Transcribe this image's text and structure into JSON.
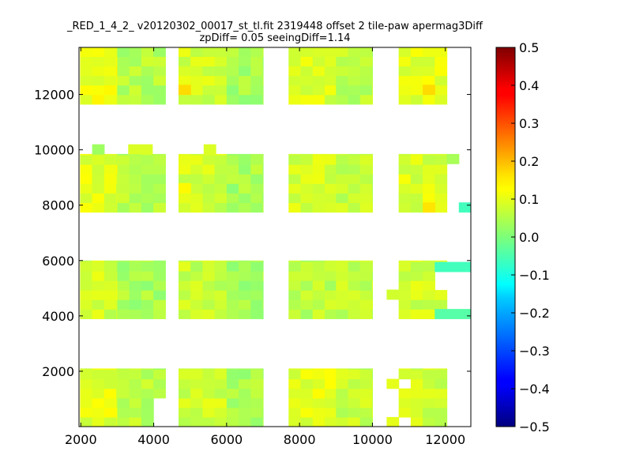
{
  "chart_data": {
    "type": "heatmap",
    "title_line1": "_RED_1_4_2_ v20120302_00017_st_tl.fit 2319448 offset 2 tile-paw apermag3Diff",
    "title_line2": "zpDiff= 0.05 seeingDiff=1.14",
    "xlim": [
      1950,
      12700
    ],
    "ylim": [
      0,
      13700
    ],
    "xticks": [
      2000,
      4000,
      6000,
      8000,
      10000,
      12000
    ],
    "yticks": [
      2000,
      4000,
      6000,
      8000,
      10000,
      12000
    ],
    "colorbar": {
      "min": -0.5,
      "max": 0.5,
      "colormap": "jet",
      "ticks": [
        0.5,
        0.4,
        0.3,
        0.2,
        0.1,
        0.0,
        -0.1,
        -0.2,
        -0.3,
        -0.4,
        -0.5
      ],
      "tick_labels": [
        "0.5",
        "0.4",
        "0.3",
        "0.2",
        "0.1",
        "0.0",
        "−0.1",
        "−0.2",
        "−0.3",
        "−0.4",
        "−0.5"
      ]
    },
    "cell_size": [
      330,
      345
    ],
    "blocks": [
      {
        "x": [
          1980,
          3000
        ],
        "y": [
          0,
          2100
        ],
        "value": 0.1
      },
      {
        "x": [
          3000,
          4320
        ],
        "y": [
          0,
          2100
        ],
        "value": 0.06
      },
      {
        "x": [
          4680,
          6000
        ],
        "y": [
          0,
          2100
        ],
        "value": 0.08
      },
      {
        "x": [
          6000,
          7000
        ],
        "y": [
          0,
          2100
        ],
        "value": 0.04
      },
      {
        "x": [
          7700,
          9000
        ],
        "y": [
          0,
          2100
        ],
        "value": 0.1
      },
      {
        "x": [
          9000,
          10000
        ],
        "y": [
          0,
          2100
        ],
        "value": 0.07
      },
      {
        "x": [
          10720,
          12040
        ],
        "y": [
          0,
          2100
        ],
        "value": 0.08
      },
      {
        "x": [
          1980,
          3000
        ],
        "y": [
          3900,
          6000
        ],
        "value": 0.08
      },
      {
        "x": [
          3000,
          4320
        ],
        "y": [
          3900,
          6000
        ],
        "value": 0.04
      },
      {
        "x": [
          4680,
          6000
        ],
        "y": [
          3900,
          6000
        ],
        "value": 0.07
      },
      {
        "x": [
          6000,
          7000
        ],
        "y": [
          3900,
          6000
        ],
        "value": 0.04
      },
      {
        "x": [
          7700,
          9000
        ],
        "y": [
          3900,
          6000
        ],
        "value": 0.06
      },
      {
        "x": [
          9000,
          10000
        ],
        "y": [
          3900,
          6000
        ],
        "value": 0.07
      },
      {
        "x": [
          10720,
          12040
        ],
        "y": [
          3900,
          6000
        ],
        "value": 0.08
      },
      {
        "x": [
          1980,
          3000
        ],
        "y": [
          7750,
          9850
        ],
        "value": 0.1
      },
      {
        "x": [
          3000,
          4320
        ],
        "y": [
          7750,
          9850
        ],
        "value": 0.05
      },
      {
        "x": [
          4680,
          6000
        ],
        "y": [
          7750,
          9850
        ],
        "value": 0.08
      },
      {
        "x": [
          6000,
          7000
        ],
        "y": [
          7750,
          9850
        ],
        "value": 0.04
      },
      {
        "x": [
          7700,
          9000
        ],
        "y": [
          7750,
          9850
        ],
        "value": 0.08
      },
      {
        "x": [
          9000,
          10000
        ],
        "y": [
          7750,
          9850
        ],
        "value": 0.07
      },
      {
        "x": [
          10720,
          12040
        ],
        "y": [
          7750,
          9850
        ],
        "value": 0.09
      },
      {
        "x": [
          1980,
          3000
        ],
        "y": [
          11650,
          13700
        ],
        "value": 0.11
      },
      {
        "x": [
          3000,
          4320
        ],
        "y": [
          11650,
          13700
        ],
        "value": 0.05
      },
      {
        "x": [
          4680,
          6000
        ],
        "y": [
          11650,
          13700
        ],
        "value": 0.08
      },
      {
        "x": [
          6000,
          7000
        ],
        "y": [
          11650,
          13700
        ],
        "value": 0.04
      },
      {
        "x": [
          7700,
          9000
        ],
        "y": [
          11650,
          13700
        ],
        "value": 0.09
      },
      {
        "x": [
          9000,
          10000
        ],
        "y": [
          11650,
          13700
        ],
        "value": 0.06
      },
      {
        "x": [
          10720,
          12040
        ],
        "y": [
          11650,
          13700
        ],
        "value": 0.1
      }
    ],
    "holes": [
      {
        "x": [
          3990,
          4320
        ],
        "y": [
          0,
          690
        ]
      },
      {
        "x": [
          3990,
          4320
        ],
        "y": [
          690,
          1035
        ]
      },
      {
        "x": [
          10720,
          11050
        ],
        "y": [
          0,
          345
        ]
      },
      {
        "x": [
          10720,
          11050
        ],
        "y": [
          1380,
          1725
        ]
      },
      {
        "x": [
          11710,
          12040
        ],
        "y": [
          4900,
          5950
        ]
      },
      {
        "x": [
          11710,
          12040
        ],
        "y": [
          3900,
          4250
        ]
      }
    ],
    "extras": [
      {
        "x": [
          2310,
          2640
        ],
        "y": [
          9850,
          10200
        ],
        "value": 0.03
      },
      {
        "x": [
          3300,
          3960
        ],
        "y": [
          9850,
          10200
        ],
        "value": 0.09
      },
      {
        "x": [
          5370,
          5700
        ],
        "y": [
          9850,
          10200
        ],
        "value": 0.09
      },
      {
        "x": [
          10390,
          10720
        ],
        "y": [
          0,
          345
        ],
        "value": 0.1
      },
      {
        "x": [
          10390,
          10720
        ],
        "y": [
          1380,
          1725
        ],
        "value": 0.1
      },
      {
        "x": [
          10390,
          10720
        ],
        "y": [
          4600,
          4950
        ],
        "value": 0.08
      },
      {
        "x": [
          11710,
          12700
        ],
        "y": [
          5600,
          5950
        ],
        "value": -0.06
      },
      {
        "x": [
          11710,
          12700
        ],
        "y": [
          3900,
          4250
        ],
        "value": -0.04
      },
      {
        "x": [
          12040,
          12370
        ],
        "y": [
          9500,
          9850
        ],
        "value": 0.04
      },
      {
        "x": [
          12370,
          12700
        ],
        "y": [
          7750,
          8100
        ],
        "value": -0.06
      },
      {
        "x": [
          11380,
          11710
        ],
        "y": [
          7750,
          8100
        ],
        "value": 0.15
      },
      {
        "x": [
          11380,
          11710
        ],
        "y": [
          12000,
          12350
        ],
        "value": 0.16
      },
      {
        "x": [
          4680,
          5010
        ],
        "y": [
          12000,
          12350
        ],
        "value": 0.16
      },
      {
        "x": [
          4680,
          5010
        ],
        "y": [
          8450,
          8800
        ],
        "value": 0.13
      }
    ]
  }
}
